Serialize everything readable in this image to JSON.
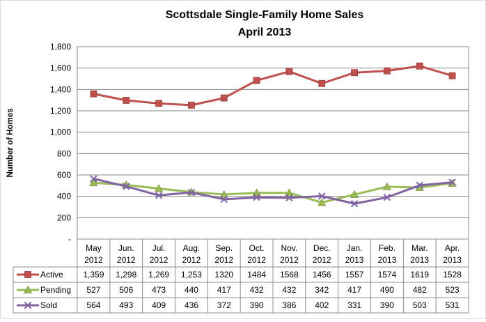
{
  "chart_data": {
    "type": "line",
    "title": "Scottsdale Single-Family Home Sales",
    "subtitle": "April 2013",
    "ylabel": "Number of Homes",
    "xlabel": "",
    "ylim": [
      0,
      1800
    ],
    "yticks": [
      0,
      200,
      400,
      600,
      800,
      1000,
      1200,
      1400,
      1600,
      1800
    ],
    "ytick_labels": [
      "-",
      "200",
      "400",
      "600",
      "800",
      "1,000",
      "1,200",
      "1,400",
      "1,600",
      "1,800"
    ],
    "grid": true,
    "legend": "data table",
    "categories": [
      {
        "month": "May",
        "year": "2012"
      },
      {
        "month": "Jun.",
        "year": "2012"
      },
      {
        "month": "Jul.",
        "year": "2012"
      },
      {
        "month": "Aug.",
        "year": "2012"
      },
      {
        "month": "Sep.",
        "year": "2012"
      },
      {
        "month": "Oct.",
        "year": "2012"
      },
      {
        "month": "Nov.",
        "year": "2012"
      },
      {
        "month": "Dec.",
        "year": "2012"
      },
      {
        "month": "Jan.",
        "year": "2013"
      },
      {
        "month": "Feb.",
        "year": "2013"
      },
      {
        "month": "Mar.",
        "year": "2013"
      },
      {
        "month": "Apr.",
        "year": "2013"
      }
    ],
    "series": [
      {
        "name": "Active",
        "color": "#c0504d",
        "marker": "square",
        "values": [
          1359,
          1298,
          1269,
          1253,
          1320,
          1484,
          1568,
          1456,
          1557,
          1574,
          1619,
          1528
        ],
        "labels": [
          "1,359",
          "1,298",
          "1,269",
          "1,253",
          "1320",
          "1484",
          "1568",
          "1456",
          "1557",
          "1574",
          "1619",
          "1528"
        ]
      },
      {
        "name": "Pending",
        "color": "#9bbb59",
        "marker": "triangle",
        "values": [
          527,
          506,
          473,
          440,
          417,
          432,
          432,
          342,
          417,
          490,
          482,
          523
        ],
        "labels": [
          "527",
          "506",
          "473",
          "440",
          "417",
          "432",
          "432",
          "342",
          "417",
          "490",
          "482",
          "523"
        ]
      },
      {
        "name": "Sold",
        "color": "#8064a2",
        "marker": "x",
        "values": [
          564,
          493,
          409,
          436,
          372,
          390,
          386,
          402,
          331,
          390,
          503,
          531
        ],
        "labels": [
          "564",
          "493",
          "409",
          "436",
          "372",
          "390",
          "386",
          "402",
          "331",
          "390",
          "503",
          "531"
        ]
      }
    ]
  }
}
